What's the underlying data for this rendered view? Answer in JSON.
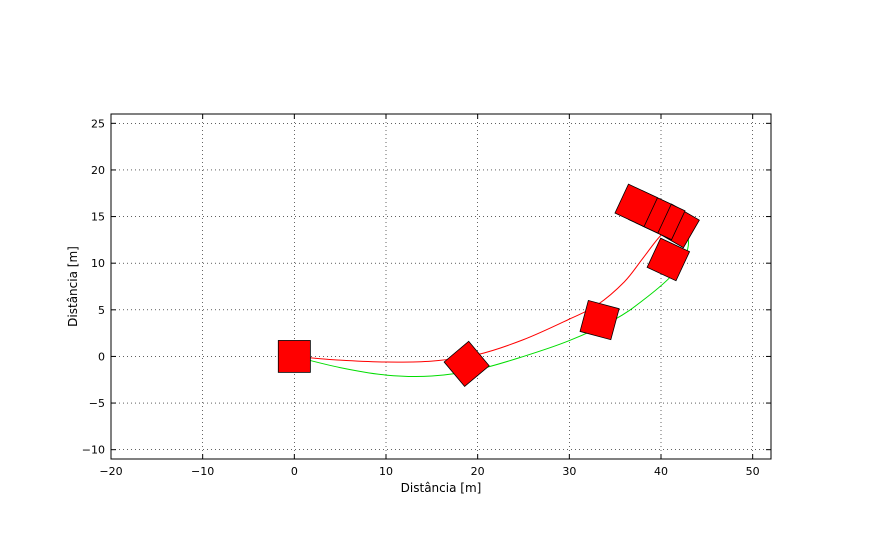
{
  "chart_data": {
    "type": "line",
    "title": "",
    "xlabel": "Distância [m]",
    "ylabel": "Distância [m]",
    "xlim": [
      -20,
      52
    ],
    "ylim": [
      -11,
      26
    ],
    "xticks": [
      -20,
      -10,
      0,
      10,
      20,
      30,
      40,
      50
    ],
    "yticks": [
      -10,
      -5,
      0,
      5,
      10,
      15,
      20,
      25
    ],
    "xtick_labels": [
      "−20",
      "−10",
      "0",
      "10",
      "20",
      "30",
      "40",
      "50"
    ],
    "ytick_labels": [
      "−10",
      "−5",
      "0",
      "5",
      "10",
      "15",
      "20",
      "25"
    ],
    "grid": true,
    "series": [
      {
        "color": "#ff0000",
        "x": [
          0,
          5,
          10,
          15,
          20,
          25,
          30,
          33,
          36,
          38,
          40,
          42
        ],
        "y": [
          0,
          -0.4,
          -0.6,
          -0.5,
          0.2,
          1.8,
          4.0,
          5.5,
          8.0,
          10.5,
          13.0,
          14.5
        ]
      },
      {
        "color": "#00dd00",
        "x": [
          0,
          5,
          10,
          15,
          20,
          25,
          30,
          35,
          38,
          41,
          42.5,
          43,
          42.5,
          41,
          40
        ],
        "y": [
          0,
          -1.2,
          -2.0,
          -2.1,
          -1.4,
          0.0,
          1.7,
          4.0,
          6.0,
          8.5,
          10.5,
          12.2,
          13.8,
          14.8,
          15.2
        ]
      }
    ],
    "vehicles": [
      {
        "x": 0,
        "y": 0,
        "heading_deg": 0,
        "length": 3.5,
        "width": 1.8
      },
      {
        "x": 18.8,
        "y": -0.8,
        "heading_deg": 40,
        "length": 3.5,
        "width": 1.8
      },
      {
        "x": 33.3,
        "y": 3.9,
        "heading_deg": 75,
        "length": 3.5,
        "width": 1.8
      },
      {
        "x": 40.8,
        "y": 10.4,
        "heading_deg": 65,
        "length": 3.5,
        "width": 1.8
      },
      {
        "x": 41.8,
        "y": 14.0,
        "heading_deg": -30,
        "length": 3.5,
        "width": 1.8
      },
      {
        "x": 40.3,
        "y": 14.8,
        "heading_deg": -25,
        "length": 3.5,
        "width": 1.8
      },
      {
        "x": 38.8,
        "y": 15.5,
        "heading_deg": -25,
        "length": 3.5,
        "width": 1.8
      },
      {
        "x": 37.3,
        "y": 16.2,
        "heading_deg": -25,
        "length": 3.5,
        "width": 1.8
      }
    ],
    "vehicle_color": "#ff0000"
  }
}
